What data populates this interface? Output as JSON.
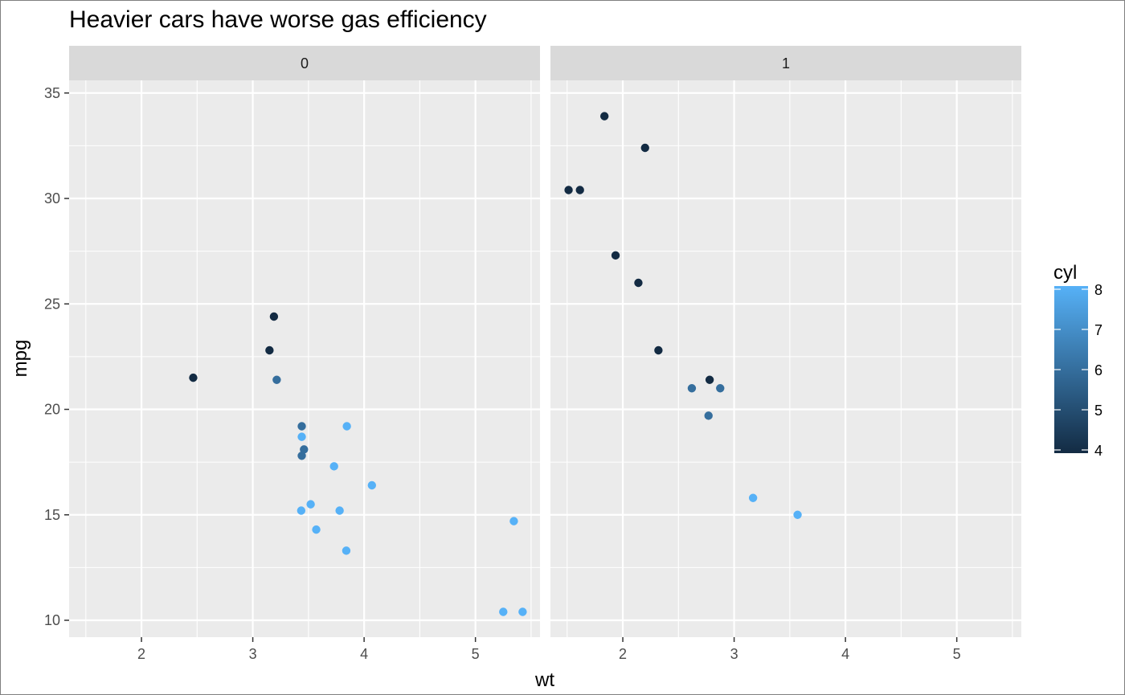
{
  "chart_data": {
    "type": "scatter",
    "title": "Heavier cars have worse gas efficiency",
    "xlabel": "wt",
    "ylabel": "mpg",
    "xlim": [
      1.35,
      5.58
    ],
    "ylim": [
      9.2,
      35.6
    ],
    "x_ticks": [
      2,
      3,
      4,
      5
    ],
    "y_ticks": [
      10,
      15,
      20,
      25,
      30,
      35
    ],
    "grid": true,
    "facets": [
      "0",
      "1"
    ],
    "color_scale": {
      "variable": "cyl",
      "min": 4,
      "max": 8,
      "ticks": [
        4,
        5,
        6,
        7,
        8
      ],
      "low_color": "#132B43",
      "high_color": "#56B1F7"
    },
    "legend": {
      "title": "cyl",
      "placement": "right"
    },
    "panels": [
      {
        "label": "0",
        "points": [
          {
            "x": 2.465,
            "y": 21.5,
            "cyl": 4
          },
          {
            "x": 3.15,
            "y": 22.8,
            "cyl": 4
          },
          {
            "x": 3.19,
            "y": 24.4,
            "cyl": 4
          },
          {
            "x": 3.215,
            "y": 21.4,
            "cyl": 6
          },
          {
            "x": 3.44,
            "y": 19.2,
            "cyl": 6
          },
          {
            "x": 3.44,
            "y": 17.8,
            "cyl": 6
          },
          {
            "x": 3.46,
            "y": 18.1,
            "cyl": 6
          },
          {
            "x": 3.44,
            "y": 18.7,
            "cyl": 8
          },
          {
            "x": 3.57,
            "y": 14.3,
            "cyl": 8
          },
          {
            "x": 4.07,
            "y": 16.4,
            "cyl": 8
          },
          {
            "x": 3.73,
            "y": 17.3,
            "cyl": 8
          },
          {
            "x": 3.78,
            "y": 15.2,
            "cyl": 8
          },
          {
            "x": 5.25,
            "y": 10.4,
            "cyl": 8
          },
          {
            "x": 5.424,
            "y": 10.4,
            "cyl": 8
          },
          {
            "x": 5.345,
            "y": 14.7,
            "cyl": 8
          },
          {
            "x": 3.52,
            "y": 15.5,
            "cyl": 8
          },
          {
            "x": 3.435,
            "y": 15.2,
            "cyl": 8
          },
          {
            "x": 3.84,
            "y": 13.3,
            "cyl": 8
          },
          {
            "x": 3.845,
            "y": 19.2,
            "cyl": 8
          }
        ]
      },
      {
        "label": "1",
        "points": [
          {
            "x": 2.62,
            "y": 21.0,
            "cyl": 6
          },
          {
            "x": 2.875,
            "y": 21.0,
            "cyl": 6
          },
          {
            "x": 2.32,
            "y": 22.8,
            "cyl": 4
          },
          {
            "x": 2.2,
            "y": 32.4,
            "cyl": 4
          },
          {
            "x": 1.615,
            "y": 30.4,
            "cyl": 4
          },
          {
            "x": 1.835,
            "y": 33.9,
            "cyl": 4
          },
          {
            "x": 1.935,
            "y": 27.3,
            "cyl": 4
          },
          {
            "x": 2.14,
            "y": 26.0,
            "cyl": 4
          },
          {
            "x": 1.513,
            "y": 30.4,
            "cyl": 4
          },
          {
            "x": 3.17,
            "y": 15.8,
            "cyl": 8
          },
          {
            "x": 2.77,
            "y": 19.7,
            "cyl": 6
          },
          {
            "x": 3.57,
            "y": 15.0,
            "cyl": 8
          },
          {
            "x": 2.78,
            "y": 21.4,
            "cyl": 4
          }
        ]
      }
    ]
  }
}
